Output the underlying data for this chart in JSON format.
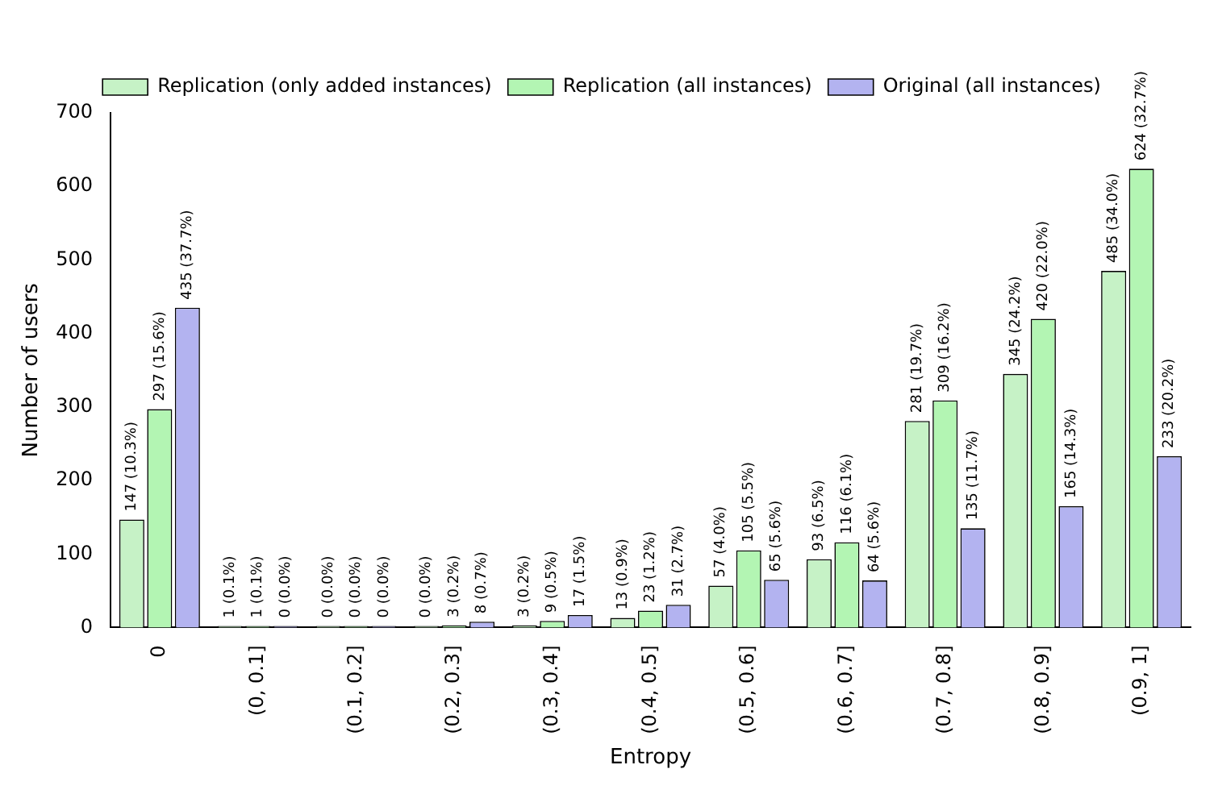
{
  "chart_data": {
    "type": "bar",
    "xlabel": "Entropy",
    "ylabel": "Number of users",
    "categories": [
      "0",
      "(0, 0.1]",
      "(0.1, 0.2]",
      "(0.2, 0.3]",
      "(0.3, 0.4]",
      "(0.4, 0.5]",
      "(0.5, 0.6]",
      "(0.6, 0.7]",
      "(0.7, 0.8]",
      "(0.8, 0.9]",
      "(0.9, 1]"
    ],
    "series": [
      {
        "name": "Replication (only added instances)",
        "color": "#c6f2c6",
        "values": [
          147,
          1,
          0,
          0,
          3,
          13,
          57,
          93,
          281,
          345,
          485
        ],
        "value_labels": [
          "147 (10.3%)",
          "1 (0.1%)",
          "0 (0.0%)",
          "0 (0.0%)",
          "3 (0.2%)",
          "13 (0.9%)",
          "57 (4.0%)",
          "93 (6.5%)",
          "281 (19.7%)",
          "345 (24.2%)",
          "485 (34.0%)"
        ]
      },
      {
        "name": "Replication (all instances)",
        "color": "#b3f5b3",
        "values": [
          297,
          1,
          0,
          3,
          9,
          23,
          105,
          116,
          309,
          420,
          624
        ],
        "value_labels": [
          "297 (15.6%)",
          "1 (0.1%)",
          "0 (0.0%)",
          "3 (0.2%)",
          "9 (0.5%)",
          "23 (1.2%)",
          "105 (5.5%)",
          "116 (6.1%)",
          "309 (16.2%)",
          "420 (22.0%)",
          "624 (32.7%)"
        ]
      },
      {
        "name": "Original (all instances)",
        "color": "#b3b3f0",
        "values": [
          435,
          0,
          0,
          8,
          17,
          31,
          65,
          64,
          135,
          165,
          233
        ],
        "value_labels": [
          "435 (37.7%)",
          "0 (0.0%)",
          "0 (0.0%)",
          "8 (0.7%)",
          "17 (1.5%)",
          "31 (2.7%)",
          "65 (5.6%)",
          "64 (5.6%)",
          "135 (11.7%)",
          "165 (14.3%)",
          "233 (20.2%)"
        ]
      }
    ],
    "ylim": [
      0,
      700
    ],
    "yticks": [
      0,
      100,
      200,
      300,
      400,
      500,
      600,
      700
    ],
    "grid": false,
    "legend": "top"
  }
}
